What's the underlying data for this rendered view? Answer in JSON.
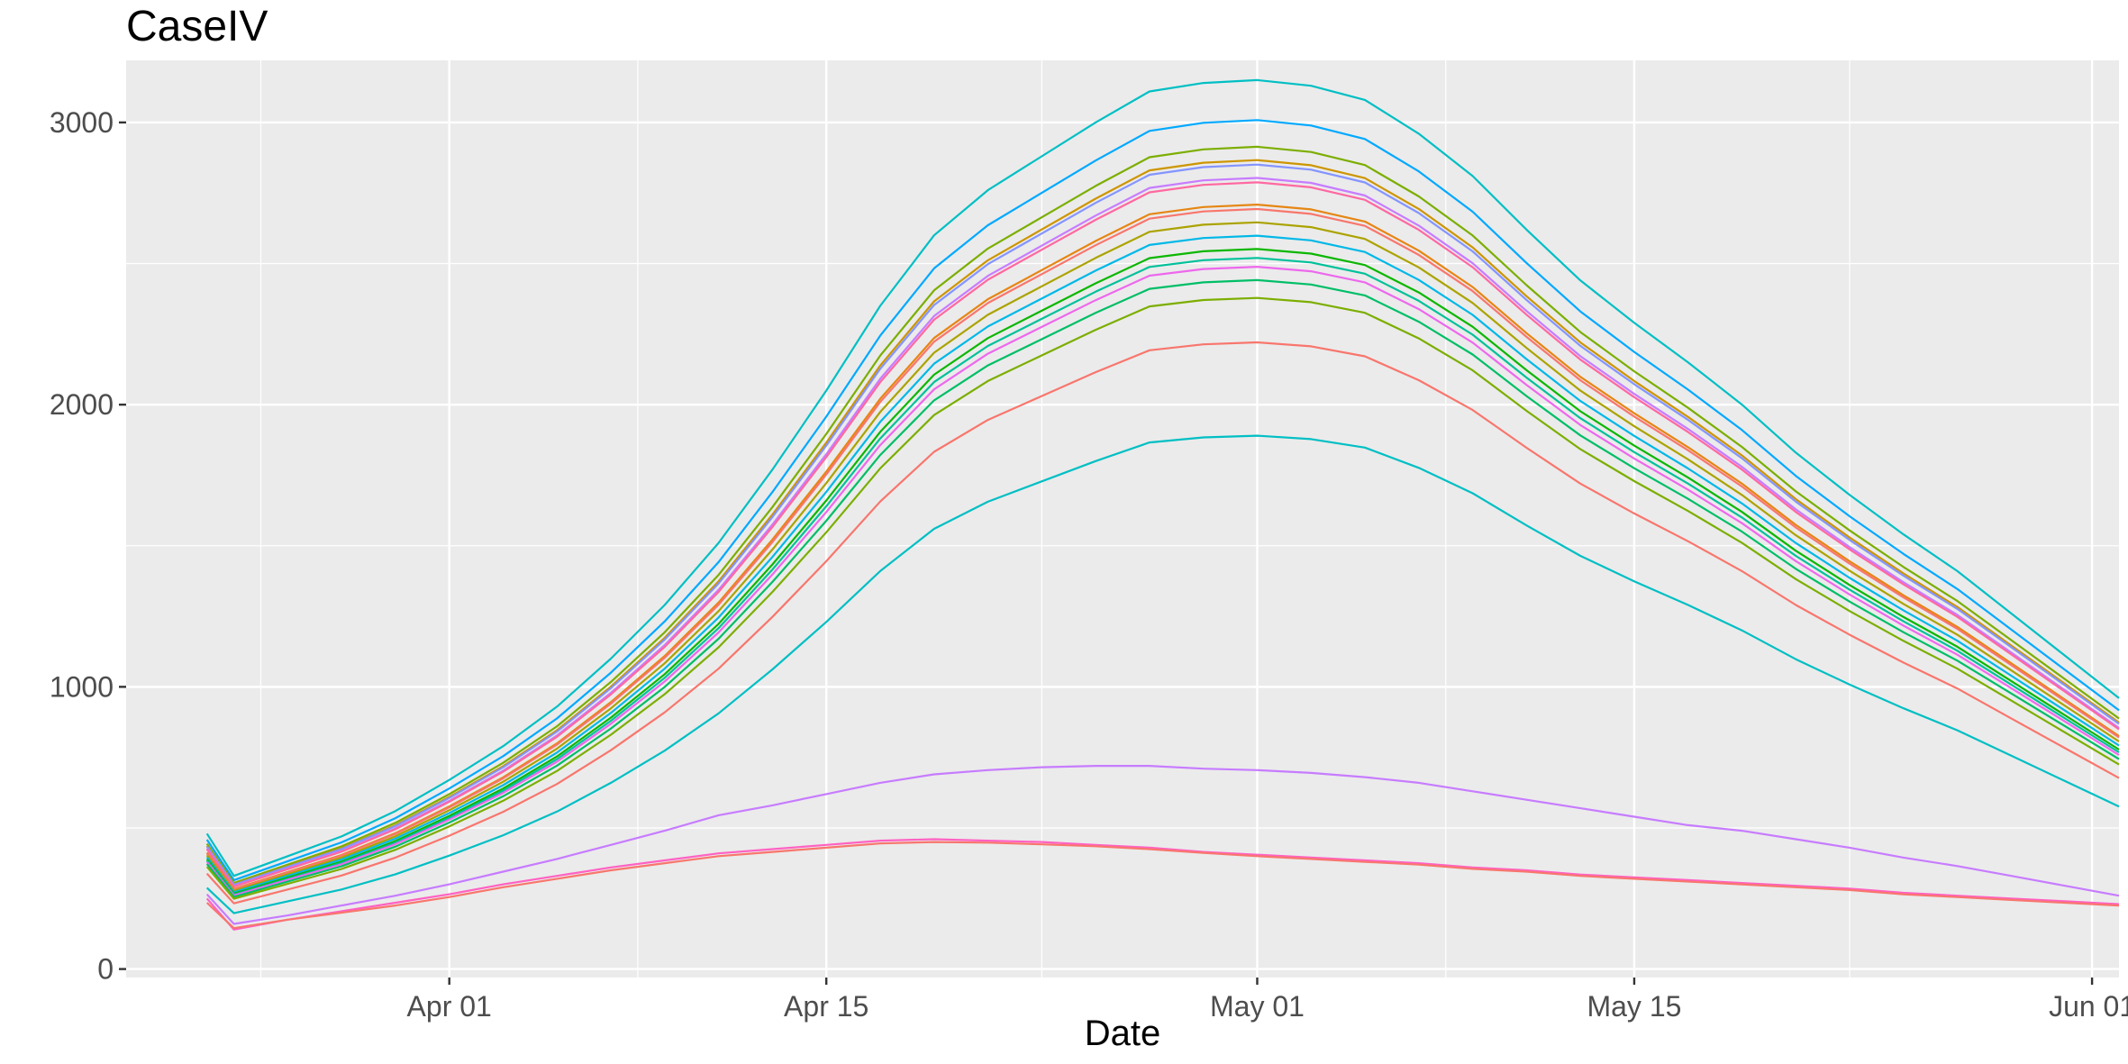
{
  "chart_data": {
    "type": "line",
    "title": "CaseIV",
    "xlabel": "Date",
    "ylabel": "",
    "xlim": [
      "2020-03-20",
      "2020-06-02"
    ],
    "ylim": [
      -30,
      3220
    ],
    "x_major_ticks": [
      "2020-04-01",
      "2020-04-15",
      "2020-05-01",
      "2020-05-15",
      "2020-06-01"
    ],
    "x_tick_labels": [
      "Apr 01",
      "Apr 15",
      "May 01",
      "May 15",
      "Jun 01"
    ],
    "x_minor_ticks": [
      "2020-03-25",
      "2020-04-08",
      "2020-04-23",
      "2020-05-08",
      "2020-05-23"
    ],
    "y_ticks": [
      0,
      1000,
      2000,
      3000
    ],
    "y_minor_ticks": [
      500,
      1500,
      2500
    ],
    "grid": true,
    "legend": "none",
    "background": "#ebebeb",
    "grid_color": "#ffffff",
    "x_start": "2020-03-23",
    "x": [
      0,
      1,
      3,
      5,
      7,
      9,
      11,
      13,
      15,
      17,
      19,
      21,
      23,
      25,
      27,
      29,
      31,
      33,
      35,
      37,
      39,
      41,
      43,
      45,
      47,
      49,
      51,
      53,
      55,
      57,
      59,
      61,
      63,
      65,
      67,
      69,
      71
    ],
    "base_curve": [
      480,
      330,
      400,
      470,
      560,
      670,
      790,
      930,
      1100,
      1290,
      1510,
      1770,
      2050,
      2350,
      2600,
      2760,
      2880,
      3000,
      3110,
      3140,
      3150,
      3130,
      3080,
      2960,
      2810,
      2620,
      2440,
      2290,
      2150,
      2000,
      1830,
      1680,
      1540,
      1410,
      1260,
      1110,
      960
    ],
    "series": [
      {
        "color": "#00BFC4",
        "scale": 1.0
      },
      {
        "color": "#00A9FF",
        "scale": 0.955
      },
      {
        "color": "#7CAE00",
        "scale": 0.925
      },
      {
        "color": "#CD9600",
        "scale": 0.91
      },
      {
        "color": "#8494FF",
        "scale": 0.905
      },
      {
        "color": "#C77CFF",
        "scale": 0.89
      },
      {
        "color": "#FF68A1",
        "scale": 0.885
      },
      {
        "color": "#E68613",
        "scale": 0.86
      },
      {
        "color": "#F8766D",
        "scale": 0.855
      },
      {
        "color": "#ABA300",
        "scale": 0.84
      },
      {
        "color": "#00B8E7",
        "scale": 0.825
      },
      {
        "color": "#0CB702",
        "scale": 0.81
      },
      {
        "color": "#00C19A",
        "scale": 0.8
      },
      {
        "color": "#ED68ED",
        "scale": 0.79
      },
      {
        "color": "#00BE67",
        "scale": 0.775
      },
      {
        "color": "#7CAE00",
        "scale": 0.755
      },
      {
        "color": "#F8766D",
        "scale": 0.705
      },
      {
        "color": "#00BFC4",
        "scale": 0.6
      }
    ],
    "low_series": [
      {
        "color": "#C77CFF",
        "y": [
          265,
          160,
          190,
          225,
          260,
          300,
          345,
          390,
          440,
          490,
          545,
          580,
          620,
          660,
          690,
          705,
          715,
          720,
          720,
          710,
          705,
          695,
          680,
          660,
          630,
          600,
          570,
          540,
          510,
          490,
          460,
          430,
          395,
          365,
          330,
          295,
          260
        ]
      },
      {
        "color": "#FF61C3",
        "y": [
          250,
          140,
          175,
          205,
          235,
          265,
          300,
          330,
          360,
          385,
          410,
          425,
          440,
          455,
          460,
          455,
          450,
          440,
          430,
          415,
          405,
          395,
          385,
          375,
          360,
          350,
          335,
          325,
          315,
          305,
          295,
          285,
          270,
          260,
          250,
          240,
          230
        ]
      },
      {
        "color": "#F8766D",
        "y": [
          235,
          145,
          175,
          200,
          225,
          255,
          290,
          320,
          350,
          375,
          400,
          415,
          430,
          445,
          450,
          448,
          442,
          435,
          425,
          412,
          400,
          390,
          380,
          370,
          355,
          345,
          330,
          320,
          310,
          300,
          290,
          280,
          265,
          255,
          245,
          235,
          225
        ]
      }
    ]
  }
}
